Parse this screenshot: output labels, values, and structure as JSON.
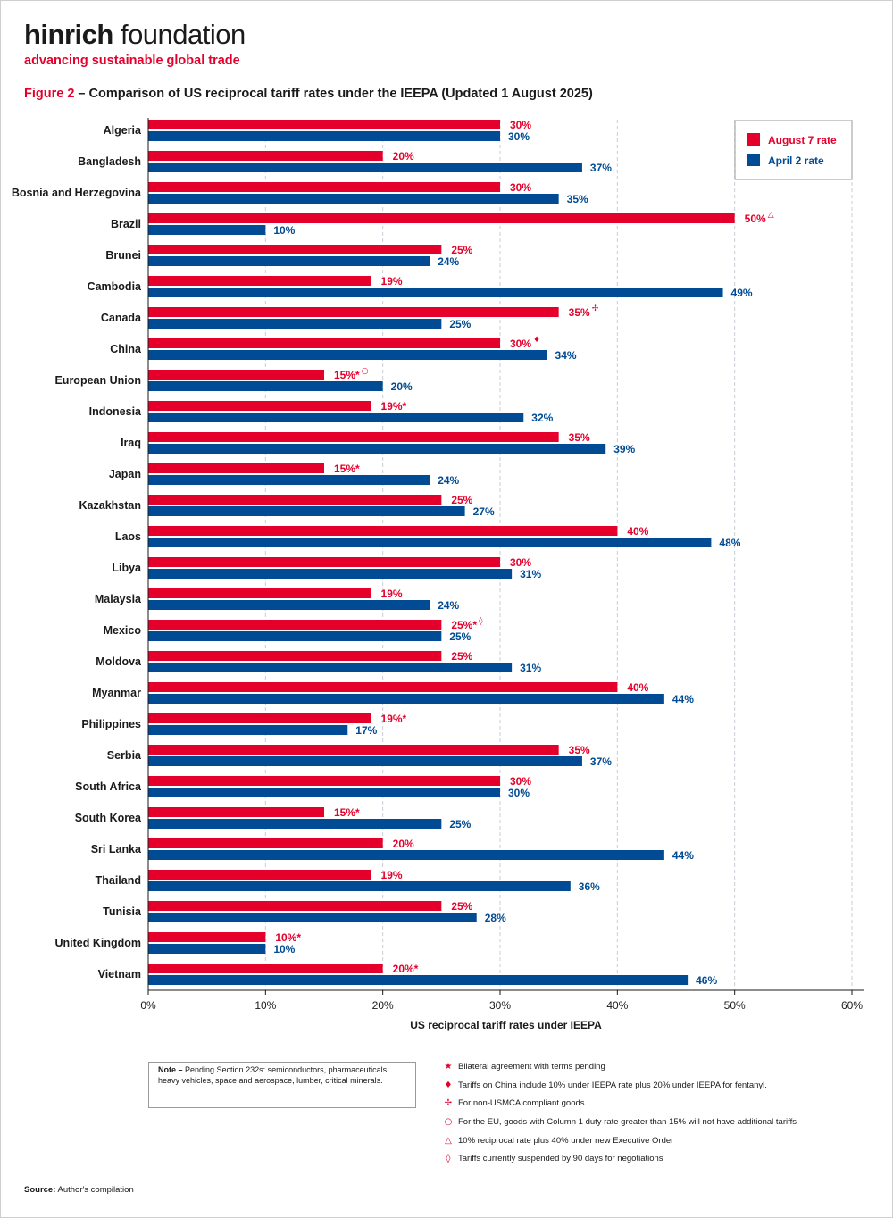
{
  "brand": {
    "name_bold": "hinrich",
    "name_light": " foundation",
    "tagline": "advancing sustainable global trade"
  },
  "figure": {
    "number": "Figure 2",
    "title": " – Comparison of US reciprocal tariff rates under the IEEPA (Updated 1 August 2025)"
  },
  "colors": {
    "august": "#e4002b",
    "april": "#004b93"
  },
  "chart_data": {
    "type": "bar",
    "orientation": "horizontal",
    "xlabel": "US reciprocal tariff rates under IEEPA",
    "xlim": [
      0,
      60
    ],
    "xticks": [
      0,
      10,
      20,
      30,
      40,
      50,
      60
    ],
    "xtick_labels": [
      "0%",
      "10%",
      "20%",
      "30%",
      "40%",
      "50%",
      "60%"
    ],
    "grid": "vertical dashed",
    "legend_position": "top-right",
    "categories": [
      "Algeria",
      "Bangladesh",
      "Bosnia and Herzegovina",
      "Brazil",
      "Brunei",
      "Cambodia",
      "Canada",
      "China",
      "European Union",
      "Indonesia",
      "Iraq",
      "Japan",
      "Kazakhstan",
      "Laos",
      "Libya",
      "Malaysia",
      "Mexico",
      "Moldova",
      "Myanmar",
      "Philippines",
      "Serbia",
      "South Africa",
      "South Korea",
      "Sri Lanka",
      "Thailand",
      "Tunisia",
      "United Kingdom",
      "Vietnam"
    ],
    "series": [
      {
        "name": "August 7 rate",
        "values": [
          30,
          20,
          30,
          50,
          25,
          19,
          35,
          30,
          15,
          19,
          35,
          15,
          25,
          40,
          30,
          19,
          25,
          25,
          40,
          19,
          35,
          30,
          15,
          20,
          19,
          25,
          10,
          20
        ],
        "labels": [
          "30%",
          "20%",
          "30%",
          "50%",
          "25%",
          "19%",
          "35%",
          "30%",
          "15%*",
          "19%*",
          "35%",
          "15%*",
          "25%",
          "40%",
          "30%",
          "19%",
          "25%*",
          "25%",
          "40%",
          "19%*",
          "35%",
          "30%",
          "15%*",
          "20%",
          "19%",
          "25%",
          "10%*",
          "20%*"
        ],
        "markers": [
          "",
          "",
          "",
          "△",
          "",
          "",
          "✢",
          "♦",
          "○",
          "",
          "",
          "",
          "",
          "",
          "",
          "",
          "◊",
          "",
          "",
          "",
          "",
          "",
          "",
          "",
          "",
          "",
          "",
          ""
        ]
      },
      {
        "name": "April 2 rate",
        "values": [
          30,
          37,
          35,
          10,
          24,
          49,
          25,
          34,
          20,
          32,
          39,
          24,
          27,
          48,
          31,
          24,
          25,
          31,
          44,
          17,
          37,
          30,
          25,
          44,
          36,
          28,
          10,
          46
        ],
        "labels": [
          "30%",
          "37%",
          "35%",
          "10%",
          "24%",
          "49%",
          "25%",
          "34%",
          "20%",
          "32%",
          "39%",
          "24%",
          "27%",
          "48%",
          "31%",
          "24%",
          "25%",
          "31%",
          "44%",
          "17%",
          "37%",
          "30%",
          "25%",
          "44%",
          "36%",
          "28%",
          "10%",
          "46%"
        ]
      }
    ]
  },
  "note": {
    "label": "Note –",
    "text": " Pending Section 232s: semiconductors, pharmaceuticals, heavy vehicles, space and aerospace, lumber, critical minerals."
  },
  "footnotes": [
    {
      "symbol": "★",
      "icon": "star-icon",
      "text": "Bilateral agreement with terms pending"
    },
    {
      "symbol": "♦",
      "icon": "diamond-filled-icon",
      "text": "Tariffs on China include 10% under IEEPA rate plus 20% under IEEPA for fentanyl."
    },
    {
      "symbol": "✢",
      "icon": "cross-icon",
      "text": "For non-USMCA compliant goods"
    },
    {
      "symbol": "○",
      "icon": "circle-icon",
      "text": "For the EU, goods with Column 1 duty rate greater than 15% will not have additional tariffs"
    },
    {
      "symbol": "△",
      "icon": "triangle-icon",
      "text": "10% reciprocal rate plus 40% under new Executive Order"
    },
    {
      "symbol": "◊",
      "icon": "diamond-outline-icon",
      "text": "Tariffs currently suspended by 90 days for negotiations"
    }
  ],
  "source": {
    "label": "Source:",
    "text": " Author's compilation"
  }
}
